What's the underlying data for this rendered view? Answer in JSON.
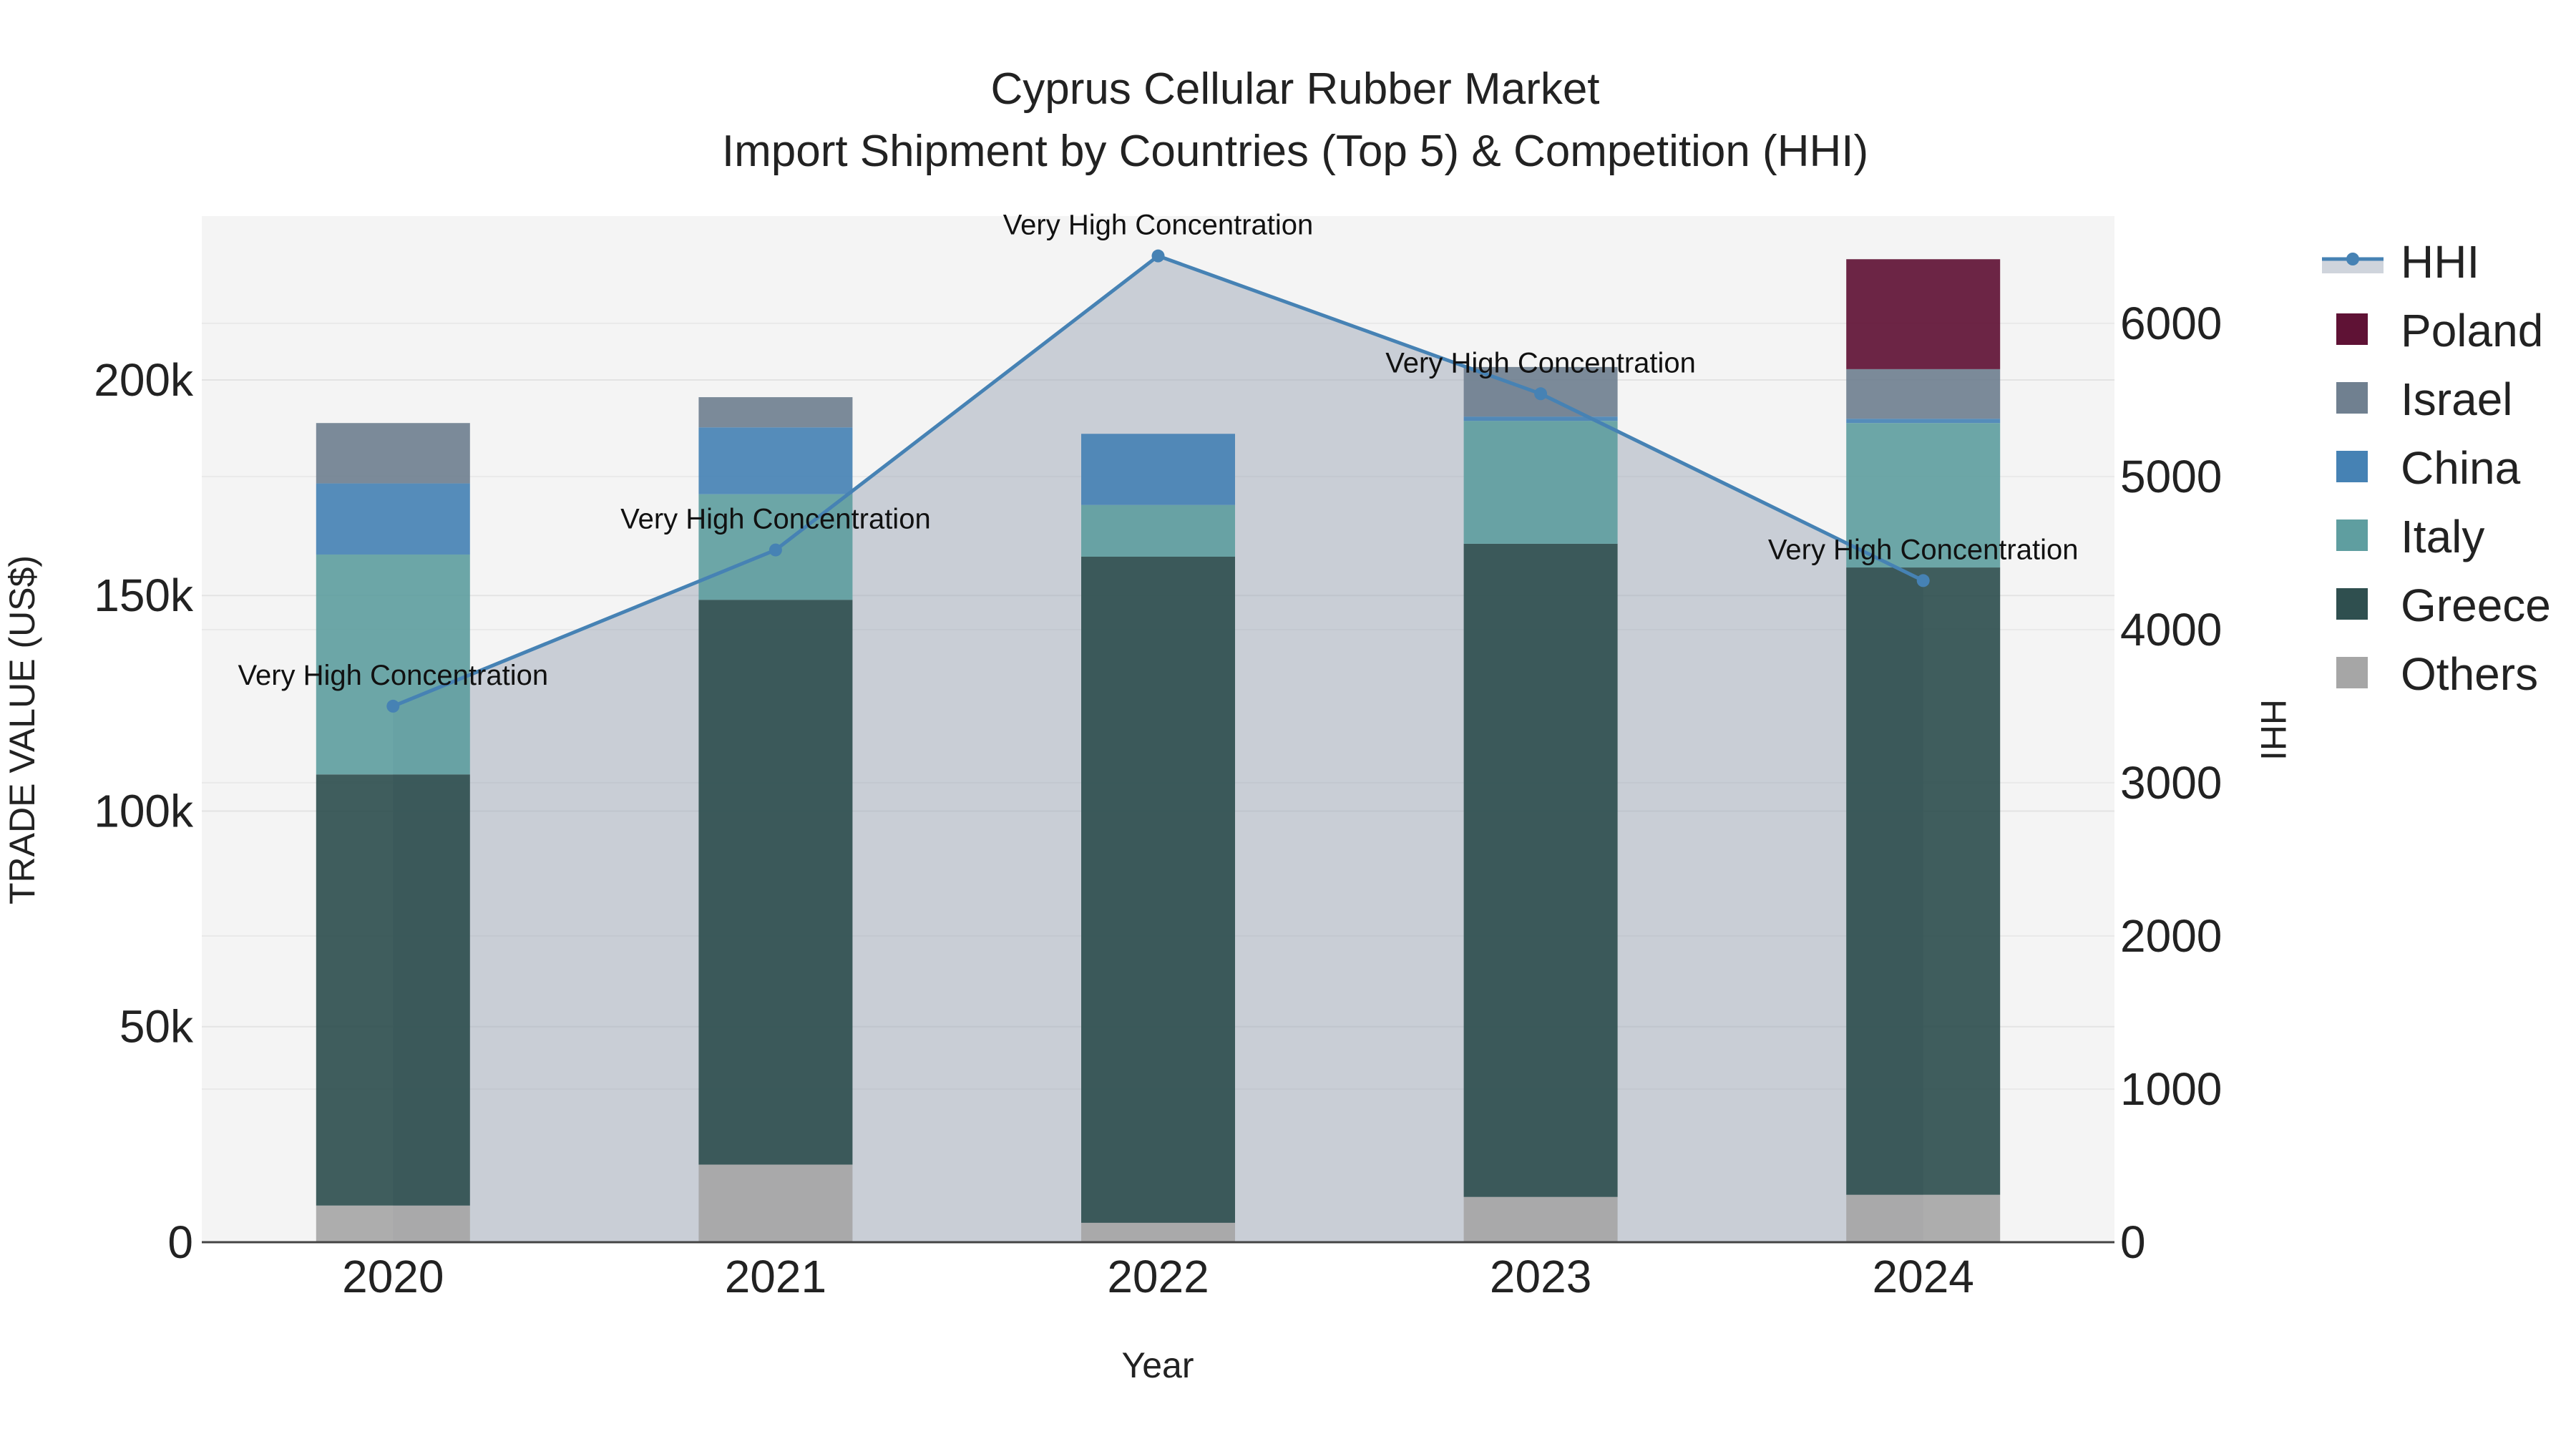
{
  "chart_data": {
    "type": "bar",
    "title": "Cyprus Cellular Rubber Market",
    "subtitle": "Import Shipment by Countries (Top 5) & Competition (HHI)",
    "xlabel": "Year",
    "ylabel": "TRADE VALUE (US$)",
    "y2label": "HHI",
    "categories": [
      "2020",
      "2021",
      "2022",
      "2023",
      "2024"
    ],
    "ylim": [
      0,
      238000
    ],
    "y_ticks": [
      0,
      50000,
      100000,
      150000,
      200000
    ],
    "y_tick_labels": [
      "0",
      "50k",
      "100k",
      "150k",
      "200k"
    ],
    "y2lim": [
      0,
      6700
    ],
    "y2_ticks": [
      0,
      1000,
      2000,
      3000,
      4000,
      5000,
      6000
    ],
    "y2_tick_labels": [
      "0",
      "1000",
      "2000",
      "3000",
      "4000",
      "5000",
      "6000"
    ],
    "legend_position": "right",
    "series": [
      {
        "name": "Others",
        "color": "#a6a6a6",
        "values": [
          8500,
          18000,
          4500,
          10500,
          11000
        ]
      },
      {
        "name": "Greece",
        "color": "#2f4f4f",
        "values": [
          100000,
          131000,
          154500,
          151500,
          145500
        ]
      },
      {
        "name": "Italy",
        "color": "#5f9ea0",
        "values": [
          51000,
          24500,
          12000,
          28500,
          33500
        ]
      },
      {
        "name": "China",
        "color": "#4682b4",
        "values": [
          16500,
          15500,
          16500,
          1000,
          1000
        ]
      },
      {
        "name": "Israel",
        "color": "#708090",
        "values": [
          14000,
          7000,
          0,
          11500,
          11500
        ]
      },
      {
        "name": "Poland",
        "color": "#5f1235",
        "values": [
          0,
          0,
          0,
          0,
          25500
        ]
      }
    ],
    "line_series": {
      "name": "HHI",
      "color": "#4682b4",
      "values": [
        3500,
        4520,
        6440,
        5540,
        4320
      ],
      "labels": [
        "Very High Concentration",
        "Very High Concentration",
        "Very High Concentration",
        "Very High Concentration",
        "Very High Concentration"
      ]
    },
    "legend_order": [
      "HHI",
      "Poland",
      "Israel",
      "China",
      "Italy",
      "Greece",
      "Others"
    ]
  }
}
